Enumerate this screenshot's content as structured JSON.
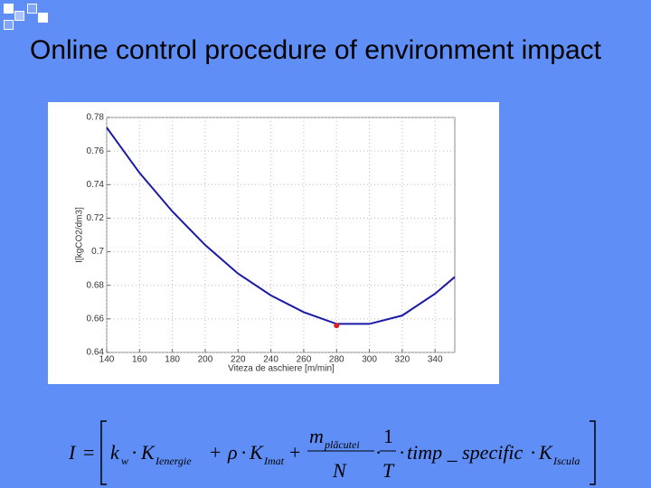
{
  "slide_title": "Online control procedure of environment impact",
  "chart_data": {
    "type": "line",
    "x_label": "Viteza de aschiere [m/min]",
    "y_label": "I[kgCO2/dm3]",
    "x": [
      140,
      160,
      180,
      200,
      220,
      240,
      260,
      280,
      300,
      320,
      340,
      352
    ],
    "series": [
      {
        "color": "#1a1aa6",
        "values": [
          0.774,
          0.747,
          0.724,
          0.704,
          0.687,
          0.674,
          0.664,
          0.657,
          0.657,
          0.662,
          0.675,
          0.685
        ]
      }
    ],
    "highlight": {
      "x": 280,
      "y": 0.656,
      "color": "#e02020"
    },
    "xlim": [
      140,
      352
    ],
    "ylim": [
      0.64,
      0.78
    ],
    "xticks": [
      140,
      160,
      180,
      200,
      220,
      240,
      260,
      280,
      300,
      320,
      340
    ],
    "yticks": [
      0.64,
      0.66,
      0.68,
      0.7,
      0.72,
      0.74,
      0.76,
      0.78
    ],
    "grid": true
  },
  "formula": {
    "lhs": "I",
    "eq": "=",
    "dot": "·",
    "plus": "+",
    "k": "k",
    "k_sub": "w",
    "K": "K",
    "K1_sub": "Ienergie",
    "rho": "ρ",
    "K2_sub": "Imat",
    "m": "m",
    "m_sub": "plăcutei",
    "N": "N",
    "one": "1",
    "T": "T",
    "timp": "timp _ specific",
    "K3_sub": "Iscula"
  }
}
